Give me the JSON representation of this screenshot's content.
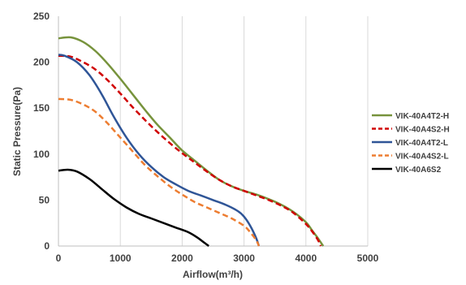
{
  "chart_data": {
    "type": "line",
    "xlabel": "Airflow(m³/h)",
    "ylabel": "Static Pressure(Pa)",
    "xlim": [
      0,
      5000
    ],
    "ylim": [
      0,
      250
    ],
    "xticks": [
      0,
      1000,
      2000,
      3000,
      4000,
      5000
    ],
    "yticks": [
      0,
      50,
      100,
      150,
      200,
      250
    ],
    "grid": "vertical",
    "legend_position": "right",
    "series": [
      {
        "name": "VIK-40A4T2-H",
        "color": "#77933c",
        "dash": "solid",
        "points": [
          [
            0,
            226
          ],
          [
            200,
            227
          ],
          [
            400,
            222
          ],
          [
            600,
            212
          ],
          [
            800,
            198
          ],
          [
            1000,
            182
          ],
          [
            1200,
            165
          ],
          [
            1400,
            148
          ],
          [
            1600,
            132
          ],
          [
            1800,
            118
          ],
          [
            2000,
            104
          ],
          [
            2200,
            93
          ],
          [
            2400,
            82
          ],
          [
            2600,
            72
          ],
          [
            2800,
            65
          ],
          [
            3000,
            60
          ],
          [
            3200,
            56
          ],
          [
            3400,
            51
          ],
          [
            3600,
            45
          ],
          [
            3800,
            37
          ],
          [
            4000,
            26
          ],
          [
            4100,
            17
          ],
          [
            4200,
            8
          ],
          [
            4280,
            0
          ]
        ]
      },
      {
        "name": "VIK-40A4S2-H",
        "color": "#d00000",
        "dash": "dashed",
        "points": [
          [
            0,
            207
          ],
          [
            200,
            206
          ],
          [
            400,
            200
          ],
          [
            600,
            192
          ],
          [
            800,
            180
          ],
          [
            1000,
            166
          ],
          [
            1200,
            151
          ],
          [
            1400,
            137
          ],
          [
            1600,
            124
          ],
          [
            1800,
            112
          ],
          [
            2000,
            101
          ],
          [
            2200,
            91
          ],
          [
            2400,
            81
          ],
          [
            2600,
            72
          ],
          [
            2800,
            65
          ],
          [
            3000,
            60
          ],
          [
            3200,
            55
          ],
          [
            3400,
            50
          ],
          [
            3600,
            44
          ],
          [
            3800,
            36
          ],
          [
            4000,
            24
          ],
          [
            4100,
            16
          ],
          [
            4200,
            6
          ],
          [
            4240,
            0
          ]
        ]
      },
      {
        "name": "VIK-40A4T2-L",
        "color": "#2f5597",
        "dash": "solid",
        "points": [
          [
            0,
            208
          ],
          [
            100,
            207
          ],
          [
            300,
            200
          ],
          [
            500,
            186
          ],
          [
            700,
            165
          ],
          [
            900,
            140
          ],
          [
            1100,
            118
          ],
          [
            1300,
            100
          ],
          [
            1500,
            86
          ],
          [
            1700,
            75
          ],
          [
            1900,
            67
          ],
          [
            2100,
            60
          ],
          [
            2300,
            55
          ],
          [
            2500,
            50
          ],
          [
            2700,
            45
          ],
          [
            2900,
            38
          ],
          [
            3000,
            32
          ],
          [
            3100,
            22
          ],
          [
            3200,
            8
          ],
          [
            3240,
            0
          ]
        ]
      },
      {
        "name": "VIK-40A4S2-L",
        "color": "#ed7d31",
        "dash": "dashed",
        "points": [
          [
            0,
            160
          ],
          [
            200,
            159
          ],
          [
            400,
            154
          ],
          [
            600,
            146
          ],
          [
            800,
            133
          ],
          [
            1000,
            118
          ],
          [
            1200,
            103
          ],
          [
            1400,
            88
          ],
          [
            1600,
            76
          ],
          [
            1800,
            65
          ],
          [
            2000,
            56
          ],
          [
            2200,
            48
          ],
          [
            2400,
            42
          ],
          [
            2600,
            36
          ],
          [
            2800,
            30
          ],
          [
            3000,
            22
          ],
          [
            3100,
            15
          ],
          [
            3200,
            6
          ],
          [
            3240,
            0
          ]
        ]
      },
      {
        "name": "VIK-40A6S2",
        "color": "#000000",
        "dash": "solid",
        "points": [
          [
            0,
            82
          ],
          [
            150,
            83
          ],
          [
            300,
            81
          ],
          [
            500,
            73
          ],
          [
            700,
            62
          ],
          [
            900,
            51
          ],
          [
            1100,
            42
          ],
          [
            1300,
            35
          ],
          [
            1500,
            30
          ],
          [
            1700,
            25
          ],
          [
            1900,
            20
          ],
          [
            2100,
            15
          ],
          [
            2250,
            9
          ],
          [
            2350,
            4
          ],
          [
            2430,
            0
          ]
        ]
      }
    ]
  }
}
